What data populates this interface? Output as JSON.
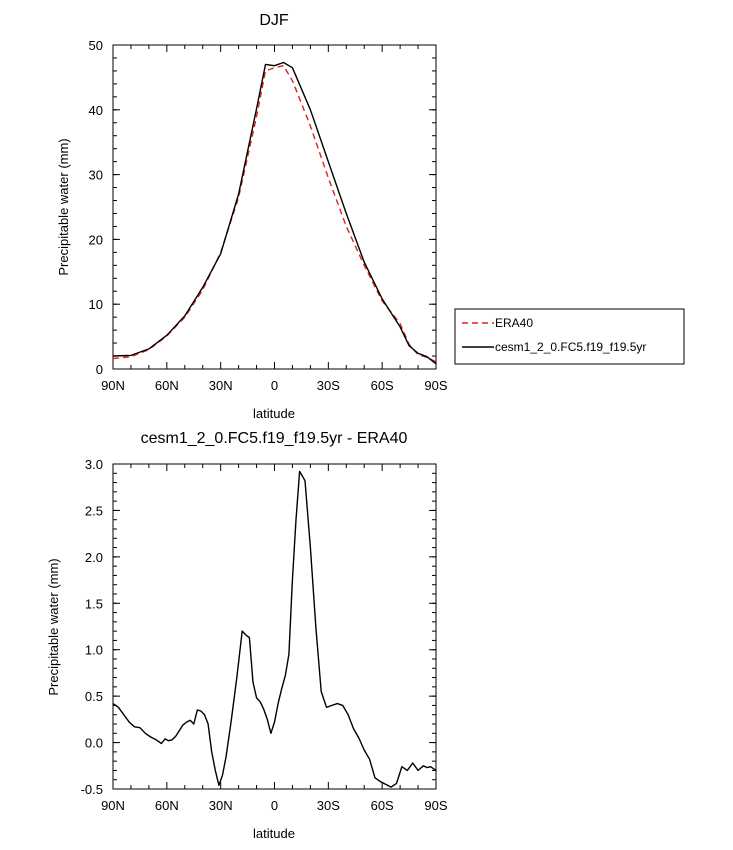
{
  "chart_data": [
    {
      "type": "line",
      "title": "DJF",
      "xlabel": "latitude",
      "ylabel": "Precipitable water (mm)",
      "xticks": [
        "90N",
        "60N",
        "30N",
        "0",
        "30S",
        "60S",
        "90S"
      ],
      "yticks": [
        "0",
        "10",
        "20",
        "30",
        "40",
        "50"
      ],
      "ylim": [
        0,
        50
      ],
      "xlim": [
        90,
        -90
      ],
      "grid": false,
      "legend": "right",
      "series": [
        {
          "name": "ERA40",
          "color": "#e0201a",
          "dash": "dashed",
          "x": [
            90,
            80,
            70,
            60,
            50,
            40,
            30,
            20,
            10,
            5,
            0,
            -5,
            -10,
            -20,
            -30,
            -40,
            -50,
            -60,
            -70,
            -75,
            -80,
            -85,
            -90
          ],
          "y": [
            1.6,
            1.9,
            3.0,
            5.1,
            8.0,
            12.2,
            18.0,
            26.5,
            39.0,
            46.0,
            46.5,
            46.8,
            44.5,
            37.5,
            29.5,
            22.0,
            16.0,
            10.5,
            7.0,
            3.8,
            2.2,
            1.8,
            1.1
          ]
        },
        {
          "name": "cesm1_2_0.FC5.f19_f19.5yr",
          "color": "#000000",
          "dash": "solid",
          "x": [
            90,
            80,
            70,
            60,
            50,
            40,
            30,
            20,
            10,
            5,
            0,
            -5,
            -10,
            -20,
            -30,
            -40,
            -50,
            -60,
            -70,
            -75,
            -80,
            -85,
            -90
          ],
          "y": [
            2.0,
            2.1,
            3.1,
            5.2,
            8.2,
            12.6,
            17.8,
            27.0,
            40.2,
            47.0,
            46.8,
            47.3,
            46.5,
            40.0,
            32.0,
            24.0,
            16.5,
            10.8,
            6.5,
            3.6,
            2.4,
            1.9,
            0.8
          ]
        }
      ]
    },
    {
      "type": "line",
      "title": "cesm1_2_0.FC5.f19_f19.5yr - ERA40",
      "xlabel": "latitude",
      "ylabel": "Precipitable water (mm)",
      "xticks": [
        "90N",
        "60N",
        "30N",
        "0",
        "30S",
        "60S",
        "90S"
      ],
      "yticks": [
        "-0.5",
        "0.0",
        "0.5",
        "1.0",
        "1.5",
        "2.0",
        "2.5",
        "3.0"
      ],
      "ylim": [
        -0.5,
        3.0
      ],
      "xlim": [
        90,
        -90
      ],
      "grid": false,
      "series": [
        {
          "color": "#000000",
          "x": [
            90,
            87,
            84,
            81,
            78,
            75,
            72,
            69,
            66,
            63,
            61,
            59,
            57,
            55,
            53,
            51,
            49,
            47,
            45,
            43,
            41,
            39,
            37,
            35,
            33,
            31,
            29,
            27,
            24,
            21,
            18,
            16,
            14,
            12,
            10,
            8,
            6,
            4,
            2,
            0,
            -2,
            -4,
            -6,
            -8,
            -10,
            -12,
            -14,
            -17,
            -20,
            -23,
            -26,
            -29,
            -32,
            -35,
            -38,
            -41,
            -44,
            -47,
            -50,
            -53,
            -56,
            -59,
            -62,
            -65,
            -68,
            -71,
            -74,
            -77,
            -80,
            -83,
            -85,
            -87,
            -90
          ],
          "y": [
            0.42,
            0.38,
            0.3,
            0.22,
            0.17,
            0.16,
            0.1,
            0.06,
            0.03,
            -0.01,
            0.04,
            0.02,
            0.03,
            0.07,
            0.13,
            0.19,
            0.22,
            0.24,
            0.2,
            0.35,
            0.34,
            0.3,
            0.2,
            -0.1,
            -0.3,
            -0.46,
            -0.35,
            -0.15,
            0.25,
            0.7,
            1.2,
            1.16,
            1.13,
            0.65,
            0.48,
            0.44,
            0.36,
            0.25,
            0.1,
            0.22,
            0.42,
            0.58,
            0.72,
            0.95,
            1.75,
            2.4,
            2.92,
            2.82,
            2.1,
            1.25,
            0.55,
            0.38,
            0.4,
            0.42,
            0.4,
            0.3,
            0.15,
            0.05,
            -0.08,
            -0.18,
            -0.38,
            -0.42,
            -0.45,
            -0.48,
            -0.44,
            -0.26,
            -0.3,
            -0.22,
            -0.3,
            -0.25,
            -0.27,
            -0.26,
            -0.3
          ]
        }
      ]
    }
  ]
}
